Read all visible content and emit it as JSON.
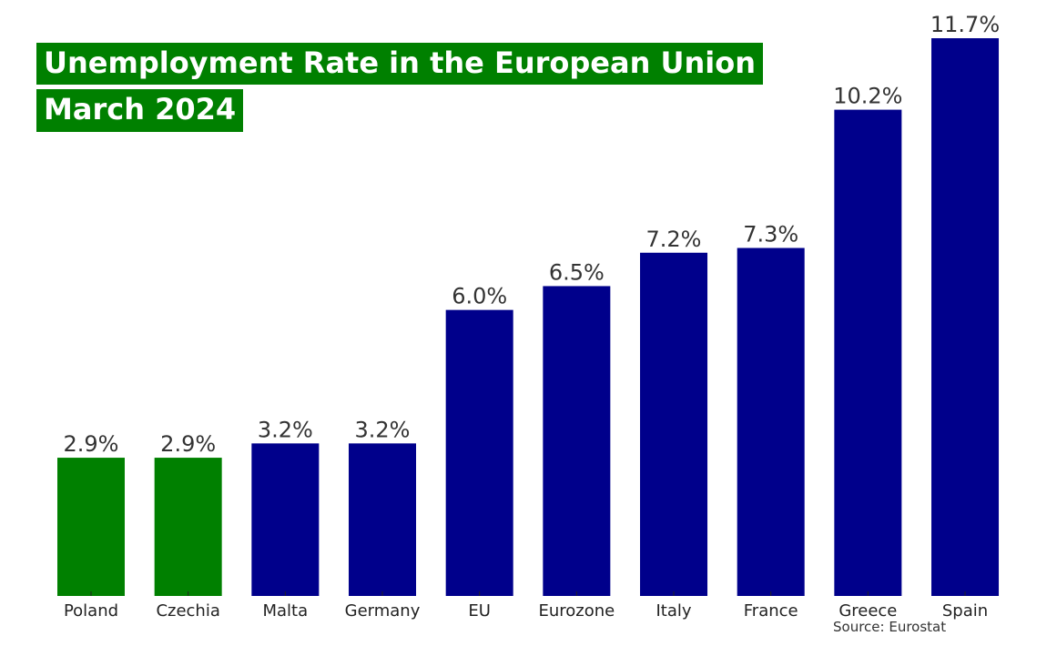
{
  "chart_data": {
    "type": "bar",
    "title": "Unemployment Rate in the European Union",
    "subtitle": "March 2024",
    "xlabel": "",
    "ylabel": "",
    "ylim": [
      0,
      11.7
    ],
    "grid": false,
    "categories": [
      "Poland",
      "Czechia",
      "Malta",
      "Germany",
      "EU",
      "Eurozone",
      "Italy",
      "France",
      "Greece",
      "Spain"
    ],
    "values": [
      2.9,
      2.9,
      3.2,
      3.2,
      6.0,
      6.5,
      7.2,
      7.3,
      10.2,
      11.7
    ],
    "data_labels": [
      "2.9%",
      "2.9%",
      "3.2%",
      "3.2%",
      "6.0%",
      "6.5%",
      "7.2%",
      "7.3%",
      "10.2%",
      "11.7%"
    ],
    "bar_colors": [
      "#008000",
      "#008000",
      "#00008b",
      "#00008b",
      "#00008b",
      "#00008b",
      "#00008b",
      "#00008b",
      "#00008b",
      "#00008b"
    ],
    "annotation": "Source: Eurostat"
  },
  "colors": {
    "highlight": "#008000",
    "default": "#00008b",
    "title_text": "#ffffff",
    "label_text": "#333333"
  }
}
